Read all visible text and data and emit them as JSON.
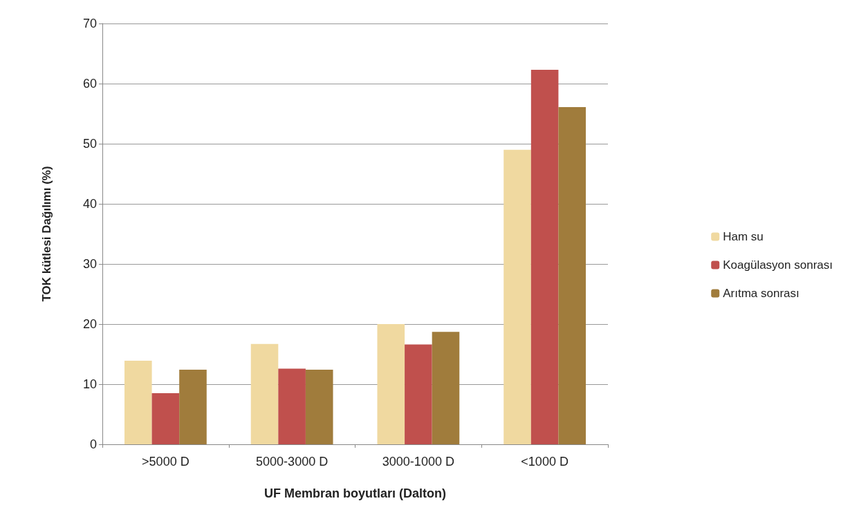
{
  "chart_data": {
    "type": "bar",
    "xlabel": "UF Membran boyutları (Dalton)",
    "ylabel": "TOK kütlesi Dağılımı (%)",
    "categories": [
      ">5000 D",
      "5000-3000 D",
      "3000-1000 D",
      "<1000 D"
    ],
    "series": [
      {
        "name": "Ham su",
        "color": "#f0d9a0",
        "values": [
          13.9,
          16.7,
          20.0,
          49.0
        ]
      },
      {
        "name": "Koagülasyon sonrası",
        "color": "#c0504d",
        "values": [
          8.5,
          12.6,
          16.6,
          62.3
        ]
      },
      {
        "name": "Arıtma sonrası",
        "color": "#a07c3c",
        "values": [
          12.4,
          12.4,
          18.7,
          56.1
        ]
      }
    ],
    "ylim": [
      0,
      70
    ],
    "yticks": [
      0,
      10,
      20,
      30,
      40,
      50,
      60,
      70
    ],
    "grid": "y",
    "legend": "right"
  }
}
